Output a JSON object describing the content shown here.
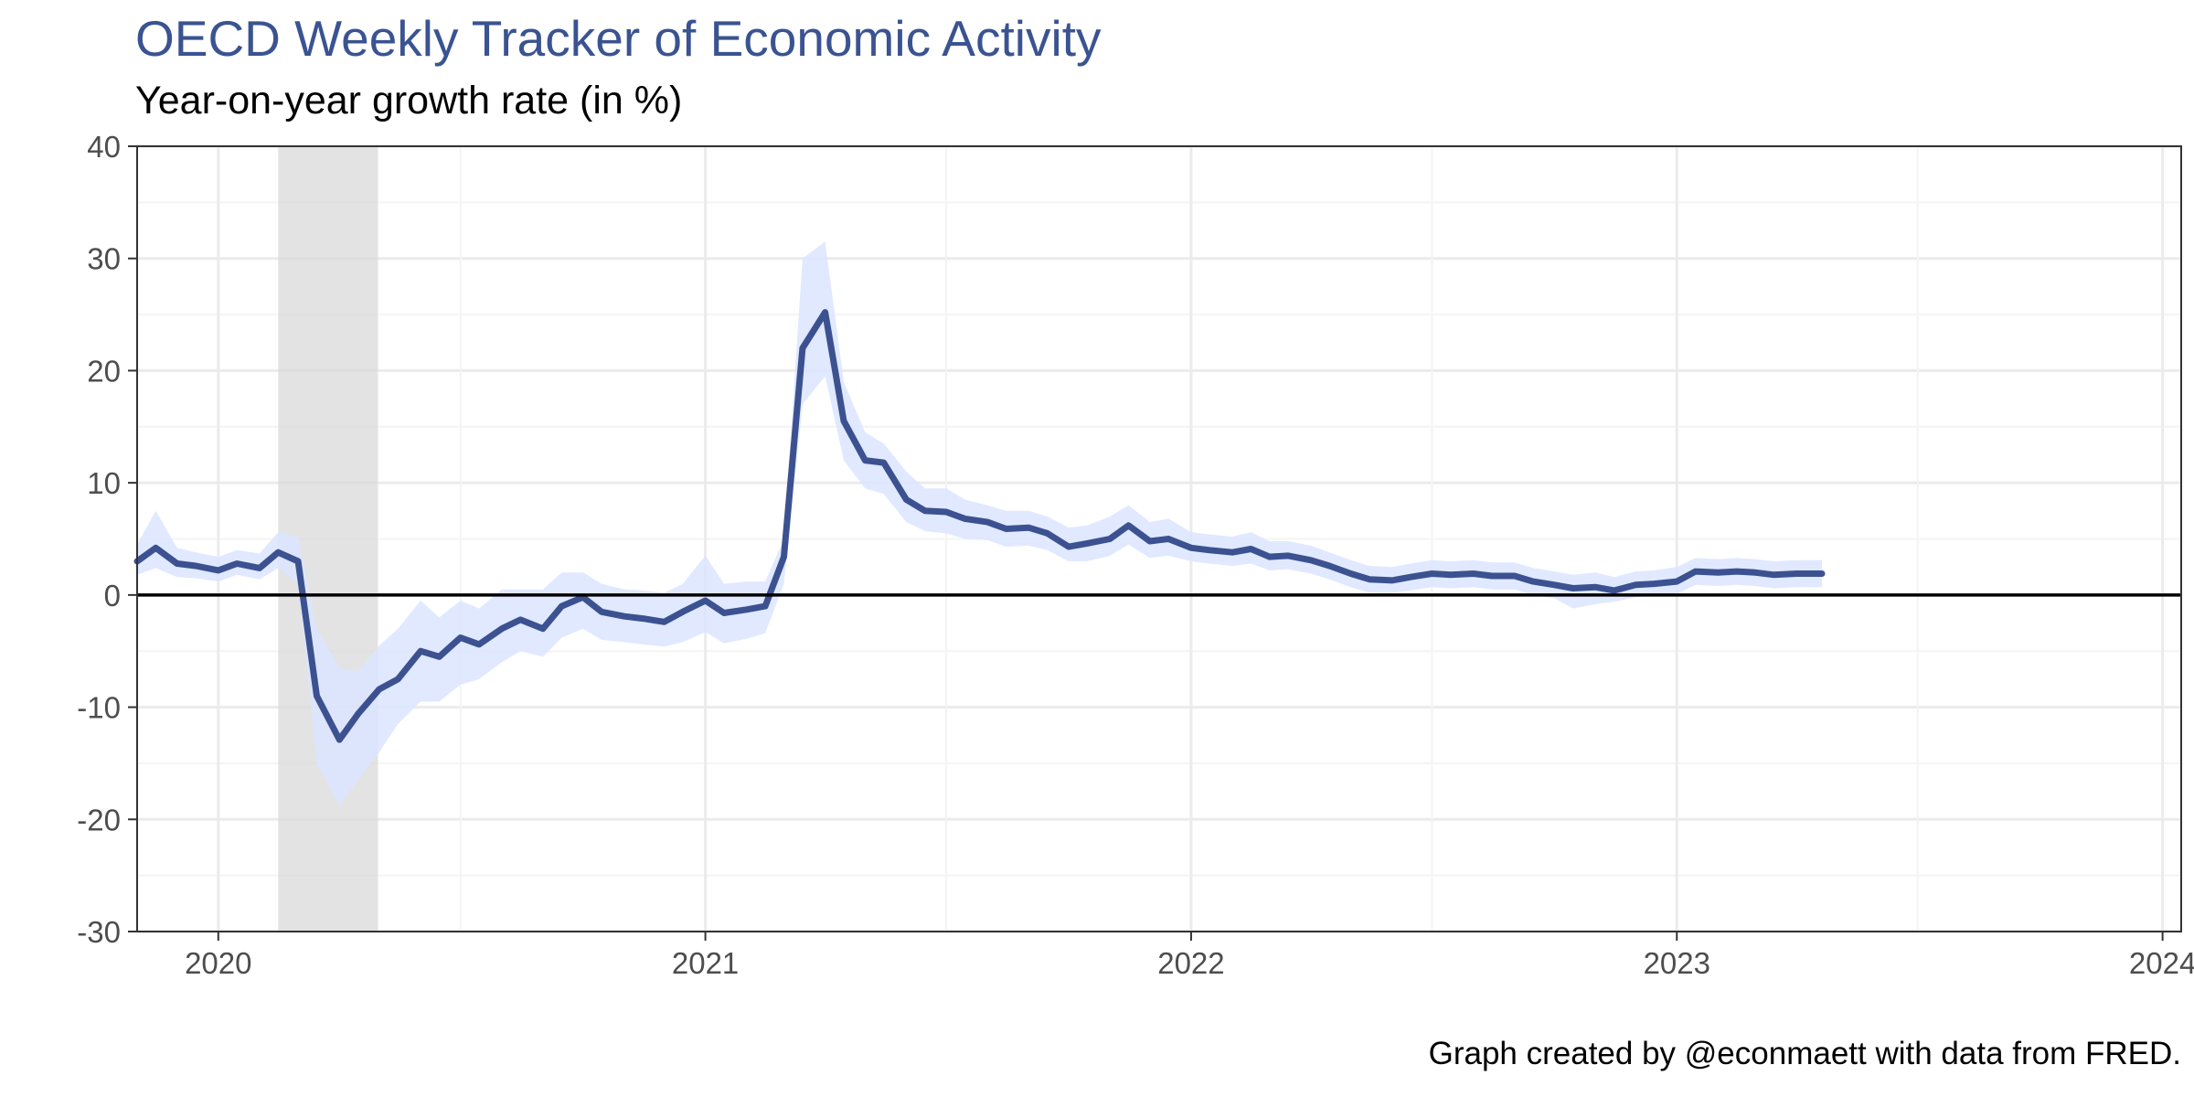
{
  "title": "OECD Weekly Tracker of Economic Activity",
  "subtitle": "Year-on-year growth rate (in %)",
  "caption": "Graph created by @econmaett with data from FRED.",
  "colors": {
    "title": "#3a5391",
    "line": "#33498a",
    "band": "#dbe5ff",
    "recession": "#d9d9d9",
    "zero_line": "#000000",
    "grid_major": "#ebebeb",
    "grid_minor": "#f4f4f4"
  },
  "chart_data": {
    "type": "line",
    "title": "OECD Weekly Tracker of Economic Activity",
    "subtitle": "Year-on-year growth rate (in %)",
    "xlabel": "",
    "ylabel": "",
    "x_ticks": [
      "2020",
      "2021",
      "2022",
      "2023",
      "2024"
    ],
    "y_ticks": [
      -30,
      -20,
      -10,
      0,
      10,
      20,
      30,
      40
    ],
    "xlim": [
      "2019-11-01",
      "2024-01-15"
    ],
    "ylim": [
      -30,
      40
    ],
    "grid": true,
    "zero_line": 0,
    "shaded_period": {
      "label": "recession",
      "start": "2020-02-15",
      "end": "2020-04-30"
    },
    "series": [
      {
        "type": "line_with_band",
        "x": [
          "2019-11-01",
          "2019-11-15",
          "2019-12-01",
          "2019-12-15",
          "2020-01-01",
          "2020-01-15",
          "2020-02-01",
          "2020-02-15",
          "2020-03-01",
          "2020-03-15",
          "2020-04-01",
          "2020-04-15",
          "2020-05-01",
          "2020-05-15",
          "2020-06-01",
          "2020-06-15",
          "2020-07-01",
          "2020-07-15",
          "2020-08-01",
          "2020-08-15",
          "2020-09-01",
          "2020-09-15",
          "2020-10-01",
          "2020-10-15",
          "2020-11-01",
          "2020-11-15",
          "2020-12-01",
          "2020-12-15",
          "2021-01-01",
          "2021-01-15",
          "2021-02-01",
          "2021-02-15",
          "2021-03-01",
          "2021-03-15",
          "2021-04-01",
          "2021-04-15",
          "2021-05-01",
          "2021-05-15",
          "2021-06-01",
          "2021-06-15",
          "2021-07-01",
          "2021-07-15",
          "2021-08-01",
          "2021-08-15",
          "2021-09-01",
          "2021-09-15",
          "2021-10-01",
          "2021-10-15",
          "2021-11-01",
          "2021-11-15",
          "2021-12-01",
          "2021-12-15",
          "2022-01-01",
          "2022-01-15",
          "2022-02-01",
          "2022-02-15",
          "2022-03-01",
          "2022-03-15",
          "2022-04-01",
          "2022-04-15",
          "2022-05-01",
          "2022-05-15",
          "2022-06-01",
          "2022-06-15",
          "2022-07-01",
          "2022-07-15",
          "2022-08-01",
          "2022-08-15",
          "2022-09-01",
          "2022-09-15",
          "2022-10-01",
          "2022-10-15",
          "2022-11-01",
          "2022-11-15",
          "2022-12-01",
          "2022-12-15",
          "2023-01-01",
          "2023-01-15",
          "2023-02-01",
          "2023-02-15",
          "2023-03-01",
          "2023-03-15",
          "2023-04-01",
          "2023-04-20"
        ],
        "values": [
          3.0,
          4.2,
          2.8,
          2.6,
          2.2,
          2.8,
          2.4,
          3.8,
          3.0,
          -9,
          -12.9,
          -10.6,
          -8.4,
          -7.5,
          -5.0,
          -5.5,
          -3.8,
          -4.4,
          -3.0,
          -2.2,
          -3.0,
          -1.0,
          -0.2,
          -1.5,
          -1.9,
          -2.1,
          -2.4,
          -1.5,
          -0.5,
          -1.6,
          -1.3,
          -1.0,
          3.4,
          22.0,
          25.2,
          15.5,
          12.0,
          11.8,
          8.5,
          7.5,
          7.4,
          6.8,
          6.5,
          5.9,
          6.0,
          5.5,
          4.3,
          4.6,
          5.0,
          6.2,
          4.8,
          5.0,
          4.2,
          4.0,
          3.8,
          4.1,
          3.4,
          3.5,
          3.1,
          2.6,
          1.9,
          1.4,
          1.3,
          1.6,
          1.9,
          1.8,
          1.9,
          1.7,
          1.7,
          1.2,
          0.9,
          0.6,
          0.7,
          0.4,
          0.9,
          1.0,
          1.2,
          2.1,
          2.0,
          2.1,
          2.0,
          1.8,
          1.9,
          1.9
        ],
        "band_lower": [
          1.8,
          2.4,
          1.6,
          1.5,
          1.2,
          1.8,
          1.4,
          2.4,
          1.0,
          -15,
          -18.8,
          -16.5,
          -14.0,
          -11.5,
          -9.5,
          -9.5,
          -8.0,
          -7.5,
          -6.0,
          -5.0,
          -5.5,
          -3.8,
          -3.0,
          -4.0,
          -4.2,
          -4.4,
          -4.6,
          -4.2,
          -3.3,
          -4.3,
          -3.9,
          -3.4,
          1.0,
          17.0,
          19.5,
          12.0,
          9.5,
          9.0,
          6.5,
          5.7,
          5.5,
          5.0,
          4.9,
          4.3,
          4.4,
          4.0,
          3.0,
          3.0,
          3.5,
          4.5,
          3.3,
          3.5,
          3.0,
          2.8,
          2.6,
          2.8,
          2.2,
          2.3,
          1.9,
          1.4,
          0.7,
          0.2,
          0.2,
          0.4,
          0.7,
          0.6,
          0.7,
          0.5,
          0.5,
          0.0,
          -0.3,
          -1.2,
          -0.8,
          -0.6,
          -0.2,
          -0.1,
          0.1,
          0.9,
          0.8,
          0.9,
          0.8,
          0.6,
          0.7,
          0.7
        ],
        "band_upper": [
          4.5,
          7.5,
          4.2,
          3.8,
          3.4,
          4.0,
          3.7,
          5.6,
          5.2,
          -3,
          -6.5,
          -6.8,
          -4.5,
          -3.0,
          -0.5,
          -2.0,
          -0.5,
          -1.2,
          0.5,
          0.5,
          0.5,
          2.0,
          2.0,
          1.0,
          0.5,
          0.4,
          0.2,
          1.0,
          3.5,
          1.0,
          1.2,
          1.2,
          5.0,
          30.0,
          31.5,
          19.0,
          14.5,
          13.5,
          11.0,
          9.5,
          9.5,
          8.5,
          8.0,
          7.5,
          7.5,
          7.0,
          6.0,
          6.2,
          7.0,
          8.0,
          6.5,
          6.8,
          5.6,
          5.4,
          5.2,
          5.6,
          4.8,
          4.8,
          4.4,
          3.8,
          3.1,
          2.6,
          2.5,
          2.8,
          3.1,
          3.0,
          3.1,
          2.9,
          2.9,
          2.4,
          2.1,
          1.8,
          2.0,
          1.6,
          2.1,
          2.2,
          2.5,
          3.3,
          3.2,
          3.3,
          3.2,
          3.0,
          3.1,
          3.1
        ]
      }
    ]
  }
}
